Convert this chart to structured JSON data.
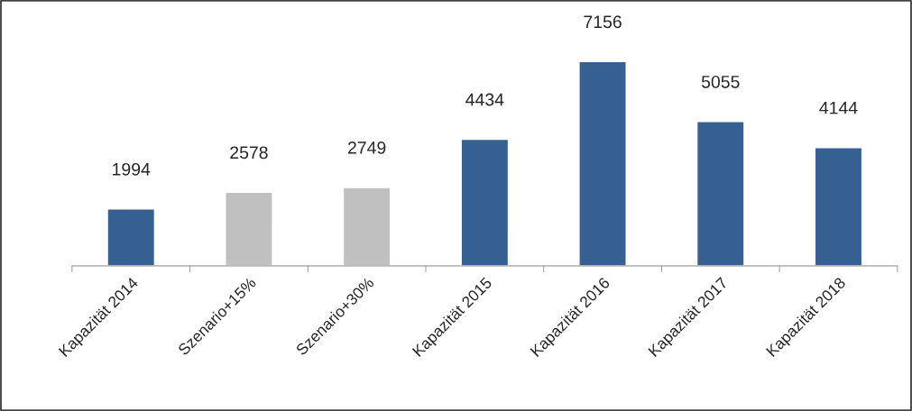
{
  "chart_data": {
    "type": "bar",
    "categories": [
      "Kapazität 2014",
      "Szenario+15%",
      "Szenario+30%",
      "Kapazität 2015",
      "Kapazität 2016",
      "Kapazität 2017",
      "Kapazität 2018"
    ],
    "values": [
      1994,
      2578,
      2749,
      4434,
      7156,
      5055,
      4144
    ],
    "colors": [
      "#376092",
      "#c0c0c0",
      "#c0c0c0",
      "#376092",
      "#376092",
      "#376092",
      "#376092"
    ],
    "data_labels": true,
    "grid": false,
    "legend": false
  }
}
